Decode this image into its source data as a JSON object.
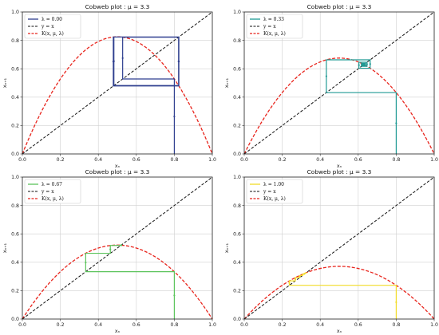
{
  "chart_data": [
    {
      "type": "line",
      "title": "Cobweb plot : μ = 3.3",
      "xlabel": "xₙ",
      "ylabel": "xₙ₊₁",
      "xlim": [
        0,
        1
      ],
      "ylim": [
        0,
        1
      ],
      "xticks": [
        "0.0",
        "0.2",
        "0.4",
        "0.6",
        "0.8",
        "1.0"
      ],
      "yticks": [
        "0.0",
        "0.2",
        "0.4",
        "0.6",
        "0.8",
        "1.0"
      ],
      "grid": true,
      "legend_position": "top-left",
      "mu": 3.3,
      "lambda": 0.0,
      "x0": 0.8,
      "cobweb_color": "#2f3f8f",
      "series": [
        {
          "name": "λ = 0.00",
          "role": "cobweb"
        },
        {
          "name": "y = x",
          "role": "identity"
        },
        {
          "name": "K(x, μ, λ)",
          "role": "map"
        }
      ]
    },
    {
      "type": "line",
      "title": "Cobweb plot : μ = 3.3",
      "xlabel": "xₙ",
      "ylabel": "xₙ₊₁",
      "xlim": [
        0,
        1
      ],
      "ylim": [
        0,
        1
      ],
      "xticks": [
        "0.0",
        "0.2",
        "0.4",
        "0.6",
        "0.8",
        "1.0"
      ],
      "yticks": [
        "0.0",
        "0.2",
        "0.4",
        "0.6",
        "0.8",
        "1.0"
      ],
      "grid": true,
      "legend_position": "top-left",
      "mu": 3.3,
      "lambda": 0.33,
      "x0": 0.8,
      "cobweb_color": "#1f9a94",
      "series": [
        {
          "name": "λ = 0.33",
          "role": "cobweb"
        },
        {
          "name": "y = x",
          "role": "identity"
        },
        {
          "name": "K(x, μ, λ)",
          "role": "map"
        }
      ]
    },
    {
      "type": "line",
      "title": "Cobweb plot : μ = 3.3",
      "xlabel": "xₙ",
      "ylabel": "xₙ₊₁",
      "xlim": [
        0,
        1
      ],
      "ylim": [
        0,
        1
      ],
      "xticks": [
        "0.0",
        "0.2",
        "0.4",
        "0.6",
        "0.8",
        "1.0"
      ],
      "yticks": [
        "0.0",
        "0.2",
        "0.4",
        "0.6",
        "0.8",
        "1.0"
      ],
      "grid": true,
      "legend_position": "top-left",
      "mu": 3.3,
      "lambda": 0.67,
      "x0": 0.8,
      "cobweb_color": "#5cc45c",
      "series": [
        {
          "name": "λ = 0.67",
          "role": "cobweb"
        },
        {
          "name": "y = x",
          "role": "identity"
        },
        {
          "name": "K(x, μ, λ)",
          "role": "map"
        }
      ]
    },
    {
      "type": "line",
      "title": "Cobweb plot : μ = 3.3",
      "xlabel": "xₙ",
      "ylabel": "xₙ₊₁",
      "xlim": [
        0,
        1
      ],
      "ylim": [
        0,
        1
      ],
      "xticks": [
        "0.0",
        "0.2",
        "0.4",
        "0.6",
        "0.8",
        "1.0"
      ],
      "yticks": [
        "0.0",
        "0.2",
        "0.4",
        "0.6",
        "0.8",
        "1.0"
      ],
      "grid": true,
      "legend_position": "top-left",
      "mu": 3.3,
      "lambda": 1.0,
      "x0": 0.8,
      "cobweb_color": "#f2dc2a",
      "series": [
        {
          "name": "λ = 1.00",
          "role": "cobweb"
        },
        {
          "name": "y = x",
          "role": "identity"
        },
        {
          "name": "K(x, μ, λ)",
          "role": "map"
        }
      ]
    }
  ]
}
